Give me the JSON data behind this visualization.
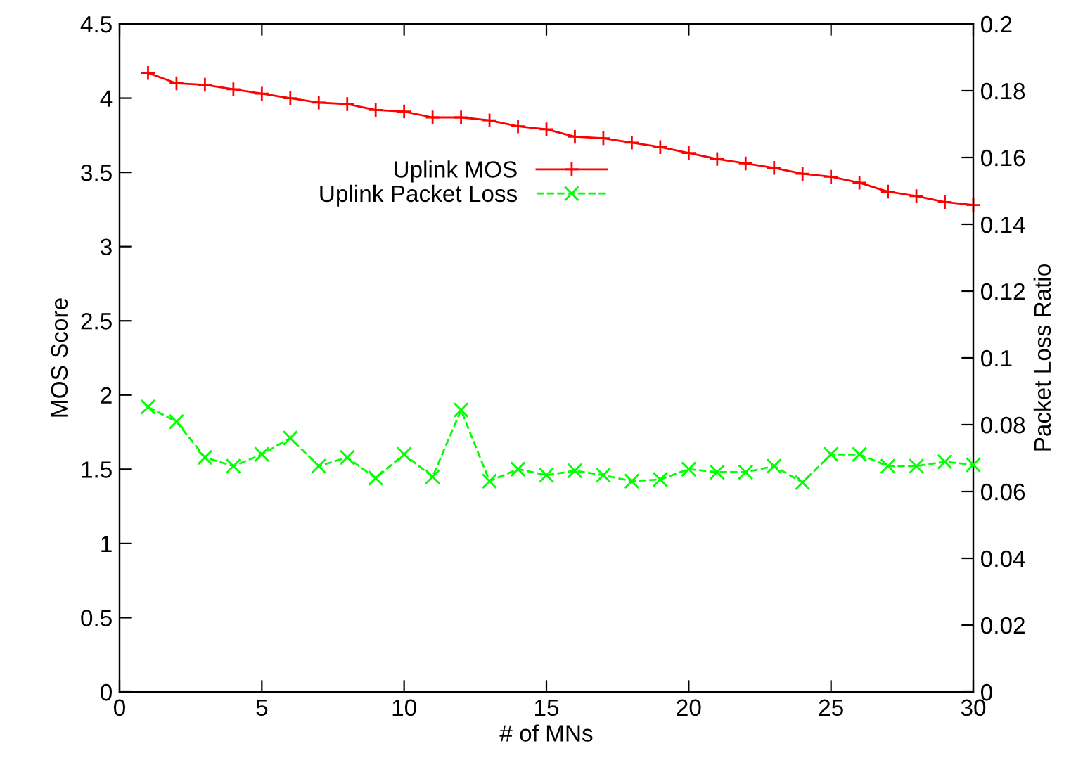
{
  "chart_data": {
    "type": "line",
    "xlabel": "# of MNs",
    "ylabel": "MOS Score",
    "y2label": "Packet Loss Ratio",
    "x": [
      1,
      2,
      3,
      4,
      5,
      6,
      7,
      8,
      9,
      10,
      11,
      12,
      13,
      14,
      15,
      16,
      17,
      18,
      19,
      20,
      21,
      22,
      23,
      24,
      25,
      26,
      27,
      28,
      29,
      30
    ],
    "series": [
      {
        "name": "Uplink MOS",
        "color": "#ff0000",
        "marker": "cross",
        "line_style": "solid",
        "values": [
          4.17,
          4.1,
          4.09,
          4.06,
          4.03,
          4.0,
          3.97,
          3.96,
          3.92,
          3.91,
          3.87,
          3.87,
          3.85,
          3.81,
          3.79,
          3.74,
          3.73,
          3.7,
          3.67,
          3.63,
          3.59,
          3.56,
          3.53,
          3.49,
          3.47,
          3.43,
          3.37,
          3.34,
          3.3,
          3.28
        ]
      },
      {
        "name": "Uplink Packet Loss",
        "color": "#00ff00",
        "marker": "x",
        "line_style": "dashed",
        "axis": "y2",
        "values": [
          0.0853,
          0.0809,
          0.0702,
          0.0676,
          0.0711,
          0.076,
          0.0676,
          0.0702,
          0.064,
          0.0711,
          0.0644,
          0.0844,
          0.0631,
          0.0667,
          0.0649,
          0.0662,
          0.0649,
          0.0631,
          0.0636,
          0.0667,
          0.0658,
          0.0658,
          0.0676,
          0.0627,
          0.0711,
          0.0711,
          0.0676,
          0.0676,
          0.0689,
          0.068
        ]
      }
    ],
    "xlim": [
      0,
      30
    ],
    "xticks": [
      0,
      5,
      10,
      15,
      20,
      25,
      30
    ],
    "ylim": [
      0,
      4.5
    ],
    "yticks": [
      0,
      0.5,
      1,
      1.5,
      2,
      2.5,
      3,
      3.5,
      4,
      4.5
    ],
    "y2lim": [
      0,
      0.2
    ],
    "y2ticks": [
      0,
      0.02,
      0.04,
      0.06,
      0.08,
      0.1,
      0.12,
      0.14,
      0.16,
      0.18,
      0.2
    ],
    "grid": false,
    "legend": "top"
  }
}
